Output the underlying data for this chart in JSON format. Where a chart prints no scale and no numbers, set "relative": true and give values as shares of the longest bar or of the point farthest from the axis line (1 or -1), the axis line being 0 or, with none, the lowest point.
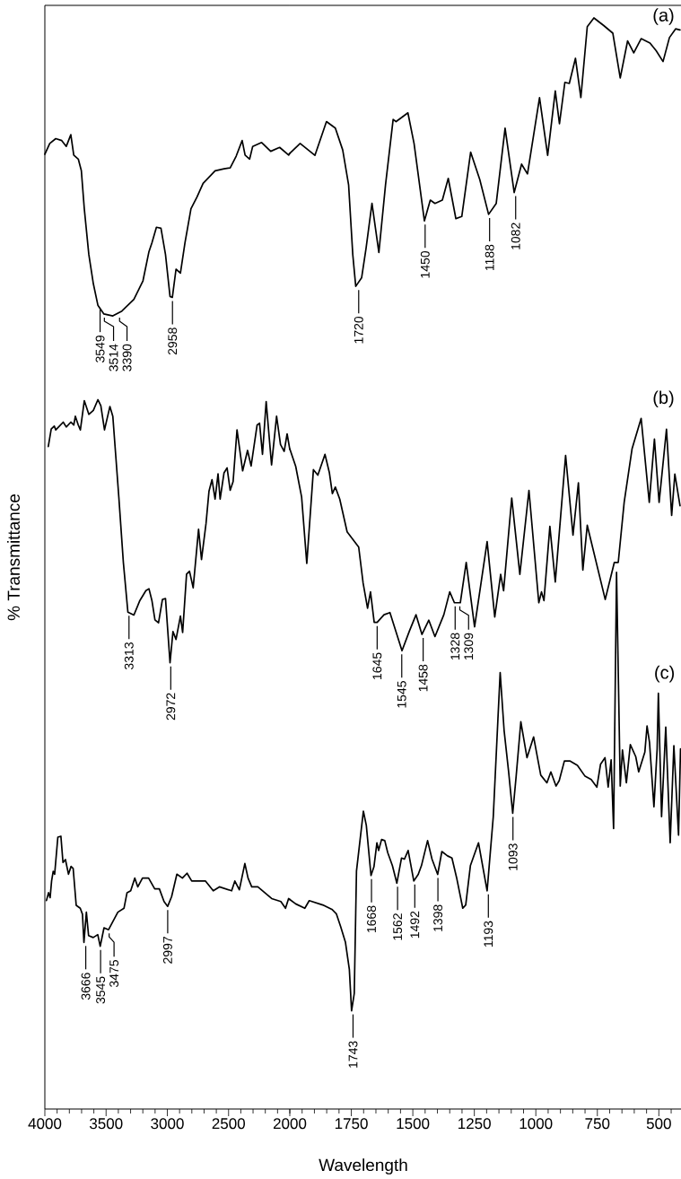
{
  "chart_data": [
    {
      "type": "line",
      "ylabel": "% Transmittance",
      "relative": true,
      "xlim": [
        4000,
        2000
      ],
      "xticks": [
        4000,
        3500,
        3000,
        2500,
        2000
      ],
      "series": [
        {
          "color": "#000000",
          "x": [
            4000,
            3960,
            3911,
            3862,
            3825,
            3788,
            3764,
            3727,
            3702,
            3678,
            3641,
            3604,
            3567,
            3518,
            3445,
            3371,
            3273,
            3199,
            3150,
            3126,
            3089,
            3052,
            3015,
            2978,
            2959,
            2929,
            2893,
            2856,
            2807,
            2758,
            2708,
            2610,
            2537,
            2487,
            2438,
            2389,
            2365,
            2328,
            2303,
            2230,
            2156,
            2083,
            2009,
            2000
          ],
          "values": [
            0.98,
            0.991,
            0.996,
            0.994,
            0.988,
            1.0,
            0.979,
            0.975,
            0.963,
            0.924,
            0.877,
            0.847,
            0.825,
            0.816,
            0.814,
            0.819,
            0.831,
            0.85,
            0.88,
            0.889,
            0.905,
            0.904,
            0.877,
            0.834,
            0.833,
            0.862,
            0.858,
            0.889,
            0.924,
            0.936,
            0.95,
            0.963,
            0.965,
            0.966,
            0.978,
            0.994,
            0.979,
            0.975,
            0.988,
            0.992,
            0.983,
            0.987,
            0.979,
            0.981
          ]
        },
        {
          "color": "#000000",
          "x": [
            3972,
            3948,
            3923,
            3911,
            3850,
            3825,
            3788,
            3764,
            3751,
            3727,
            3710,
            3678,
            3641,
            3604,
            3567,
            3543,
            3513,
            3469,
            3445,
            3396,
            3359,
            3322,
            3273,
            3224,
            3175,
            3150,
            3126,
            3101,
            3072,
            3040,
            3015,
            2978,
            2954,
            2929,
            2893,
            2875,
            2843,
            2819,
            2789,
            2745,
            2721,
            2684,
            2660,
            2635,
            2610,
            2586,
            2569,
            2537,
            2512,
            2487,
            2463,
            2431,
            2385,
            2345,
            2316,
            2267,
            2247,
            2223,
            2193,
            2149,
            2108,
            2076,
            2046,
            2022,
            2000
          ],
          "values": [
            0.68,
            0.698,
            0.701,
            0.697,
            0.705,
            0.7,
            0.705,
            0.702,
            0.711,
            0.702,
            0.697,
            0.727,
            0.713,
            0.717,
            0.728,
            0.722,
            0.697,
            0.721,
            0.711,
            0.628,
            0.561,
            0.51,
            0.507,
            0.522,
            0.532,
            0.534,
            0.522,
            0.502,
            0.499,
            0.523,
            0.524,
            0.458,
            0.49,
            0.482,
            0.506,
            0.489,
            0.549,
            0.552,
            0.535,
            0.595,
            0.564,
            0.601,
            0.634,
            0.646,
            0.626,
            0.652,
            0.626,
            0.653,
            0.658,
            0.635,
            0.644,
            0.697,
            0.655,
            0.676,
            0.66,
            0.702,
            0.704,
            0.672,
            0.726,
            0.661,
            0.711,
            0.682,
            0.675,
            0.693,
            0.677
          ]
        },
        {
          "color": "#000000",
          "x": [
            3987,
            3970,
            3957,
            3945,
            3932,
            3920,
            3894,
            3869,
            3852,
            3832,
            3807,
            3786,
            3769,
            3744,
            3711,
            3693,
            3681,
            3661,
            3643,
            3605,
            3568,
            3548,
            3517,
            3480,
            3404,
            3354,
            3329,
            3299,
            3266,
            3241,
            3203,
            3153,
            3103,
            3065,
            3027,
            2997,
            2965,
            2922,
            2877,
            2839,
            2801,
            2688,
            2625,
            2575,
            2475,
            2449,
            2412,
            2367,
            2341,
            2311,
            2261,
            2148,
            2073,
            2035,
            2010,
            2000
          ],
          "values": [
            0.214,
            0.222,
            0.217,
            0.234,
            0.244,
            0.241,
            0.279,
            0.28,
            0.253,
            0.256,
            0.241,
            0.249,
            0.247,
            0.209,
            0.206,
            0.2,
            0.171,
            0.202,
            0.178,
            0.176,
            0.179,
            0.167,
            0.186,
            0.184,
            0.202,
            0.206,
            0.222,
            0.224,
            0.237,
            0.228,
            0.237,
            0.237,
            0.226,
            0.226,
            0.213,
            0.208,
            0.218,
            0.241,
            0.237,
            0.242,
            0.234,
            0.234,
            0.224,
            0.228,
            0.224,
            0.234,
            0.225,
            0.252,
            0.237,
            0.228,
            0.228,
            0.216,
            0.213,
            0.206,
            0.216,
            0.215
          ]
        }
      ],
      "annotations": [
        {
          "text": "3549",
          "x": 3549,
          "y": 0.825
        },
        {
          "text": "3514",
          "x": 3514,
          "y": 0.816
        },
        {
          "text": "3390",
          "x": 3390,
          "y": 0.816
        },
        {
          "text": "2958",
          "x": 2958,
          "y": 0.833
        },
        {
          "text": "3313",
          "x": 3313,
          "y": 0.51
        },
        {
          "text": "2972",
          "x": 2972,
          "y": 0.458
        },
        {
          "text": "3666",
          "x": 3666,
          "y": 0.171
        },
        {
          "text": "3545",
          "x": 3545,
          "y": 0.167
        },
        {
          "text": "3475",
          "x": 3475,
          "y": 0.184
        },
        {
          "text": "2997",
          "x": 2997,
          "y": 0.208
        }
      ]
    },
    {
      "type": "line",
      "xlabel": "Wavelength",
      "relative": true,
      "xlim": [
        2000,
        410
      ],
      "xticks": [
        1750,
        1500,
        1250,
        1000,
        750,
        500
      ],
      "series": [
        {
          "name": "(a)",
          "color": "#000000",
          "x": [
            2000,
            1958,
            1898,
            1851,
            1815,
            1785,
            1761,
            1744,
            1732,
            1708,
            1690,
            1666,
            1638,
            1611,
            1580,
            1568,
            1520,
            1495,
            1453,
            1429,
            1410,
            1380,
            1356,
            1325,
            1301,
            1265,
            1228,
            1192,
            1161,
            1125,
            1088,
            1058,
            1034,
            985,
            952,
            921,
            904,
            882,
            864,
            839,
            817,
            791,
            764,
            724,
            687,
            657,
            627,
            602,
            572,
            536,
            511,
            483,
            457,
            432,
            414
          ],
          "values": [
            0.876,
            0.885,
            0.874,
            0.905,
            0.899,
            0.879,
            0.847,
            0.783,
            0.754,
            0.762,
            0.789,
            0.83,
            0.785,
            0.847,
            0.907,
            0.905,
            0.913,
            0.885,
            0.814,
            0.833,
            0.83,
            0.833,
            0.853,
            0.816,
            0.818,
            0.877,
            0.852,
            0.82,
            0.83,
            0.899,
            0.84,
            0.866,
            0.857,
            0.927,
            0.874,
            0.933,
            0.903,
            0.941,
            0.94,
            0.963,
            0.927,
            0.992,
            1.0,
            0.993,
            0.986,
            0.945,
            0.979,
            0.968,
            0.981,
            0.977,
            0.97,
            0.96,
            0.982,
            0.99,
            0.989
          ]
        },
        {
          "name": "(b)",
          "color": "#000000",
          "x": [
            2000,
            1976,
            1952,
            1931,
            1904,
            1886,
            1857,
            1839,
            1827,
            1815,
            1797,
            1767,
            1720,
            1702,
            1684,
            1672,
            1657,
            1645,
            1617,
            1593,
            1544,
            1514,
            1487,
            1463,
            1435,
            1410,
            1374,
            1350,
            1331,
            1307,
            1283,
            1249,
            1198,
            1167,
            1143,
            1131,
            1098,
            1065,
            1028,
            988,
            977,
            967,
            943,
            921,
            879,
            849,
            827,
            809,
            791,
            718,
            681,
            665,
            641,
            609,
            572,
            539,
            518,
            499,
            469,
            448,
            435,
            414
          ],
          "values": [
            0.605,
            0.589,
            0.561,
            0.5,
            0.586,
            0.581,
            0.6,
            0.583,
            0.564,
            0.57,
            0.559,
            0.529,
            0.515,
            0.482,
            0.459,
            0.474,
            0.446,
            0.446,
            0.453,
            0.455,
            0.42,
            0.438,
            0.453,
            0.435,
            0.448,
            0.433,
            0.453,
            0.474,
            0.464,
            0.464,
            0.501,
            0.442,
            0.52,
            0.451,
            0.49,
            0.475,
            0.56,
            0.49,
            0.567,
            0.464,
            0.474,
            0.466,
            0.534,
            0.483,
            0.599,
            0.526,
            0.574,
            0.494,
            0.535,
            0.467,
            0.501,
            0.501,
            0.556,
            0.605,
            0.633,
            0.556,
            0.614,
            0.556,
            0.623,
            0.544,
            0.582,
            0.553
          ]
        },
        {
          "name": "(c)",
          "color": "#000000",
          "x": [
            2000,
            1976,
            1939,
            1921,
            1866,
            1829,
            1811,
            1793,
            1774,
            1758,
            1749,
            1738,
            1729,
            1701,
            1689,
            1670,
            1658,
            1646,
            1639,
            1627,
            1614,
            1602,
            1583,
            1565,
            1546,
            1534,
            1519,
            1496,
            1478,
            1465,
            1440,
            1422,
            1399,
            1382,
            1359,
            1341,
            1322,
            1297,
            1285,
            1266,
            1233,
            1198,
            1173,
            1154,
            1145,
            1129,
            1111,
            1094,
            1080,
            1061,
            1036,
            1009,
            980,
            955,
            939,
            918,
            905,
            884,
            862,
            831,
            800,
            775,
            752,
            737,
            719,
            706,
            694,
            684,
            672,
            657,
            648,
            632,
            616,
            594,
            582,
            557,
            548,
            538,
            520,
            507,
            502,
            489,
            472,
            454,
            439,
            420,
            412
          ],
          "values": [
            0.192,
            0.188,
            0.184,
            0.191,
            0.187,
            0.183,
            0.179,
            0.167,
            0.153,
            0.128,
            0.09,
            0.106,
            0.218,
            0.273,
            0.26,
            0.214,
            0.222,
            0.244,
            0.237,
            0.247,
            0.246,
            0.235,
            0.223,
            0.207,
            0.23,
            0.229,
            0.237,
            0.209,
            0.215,
            0.223,
            0.246,
            0.229,
            0.215,
            0.236,
            0.232,
            0.23,
            0.212,
            0.184,
            0.187,
            0.223,
            0.244,
            0.2,
            0.268,
            0.358,
            0.4,
            0.347,
            0.31,
            0.271,
            0.305,
            0.355,
            0.322,
            0.341,
            0.306,
            0.299,
            0.309,
            0.296,
            0.301,
            0.319,
            0.319,
            0.315,
            0.305,
            0.302,
            0.295,
            0.316,
            0.322,
            0.295,
            0.32,
            0.257,
            0.492,
            0.296,
            0.329,
            0.299,
            0.334,
            0.323,
            0.309,
            0.327,
            0.351,
            0.336,
            0.277,
            0.33,
            0.381,
            0.268,
            0.35,
            0.244,
            0.333,
            0.251,
            0.33
          ]
        }
      ],
      "annotations": [
        {
          "text": "1720",
          "x": 1720,
          "y": 0.754
        },
        {
          "text": "1450",
          "x": 1450,
          "y": 0.814
        },
        {
          "text": "1188",
          "x": 1188,
          "y": 0.82
        },
        {
          "text": "1082",
          "x": 1082,
          "y": 0.84
        },
        {
          "text": "1645",
          "x": 1645,
          "y": 0.446
        },
        {
          "text": "1545",
          "x": 1545,
          "y": 0.42
        },
        {
          "text": "1458",
          "x": 1458,
          "y": 0.435
        },
        {
          "text": "1328",
          "x": 1328,
          "y": 0.464
        },
        {
          "text": "1309",
          "x": 1309,
          "y": 0.464
        },
        {
          "text": "1743",
          "x": 1743,
          "y": 0.09
        },
        {
          "text": "1668",
          "x": 1668,
          "y": 0.214
        },
        {
          "text": "1562",
          "x": 1562,
          "y": 0.207
        },
        {
          "text": "1492",
          "x": 1492,
          "y": 0.209
        },
        {
          "text": "1398",
          "x": 1398,
          "y": 0.215
        },
        {
          "text": "1193",
          "x": 1193,
          "y": 0.2
        },
        {
          "text": "1093",
          "x": 1093,
          "y": 0.271
        }
      ]
    }
  ]
}
